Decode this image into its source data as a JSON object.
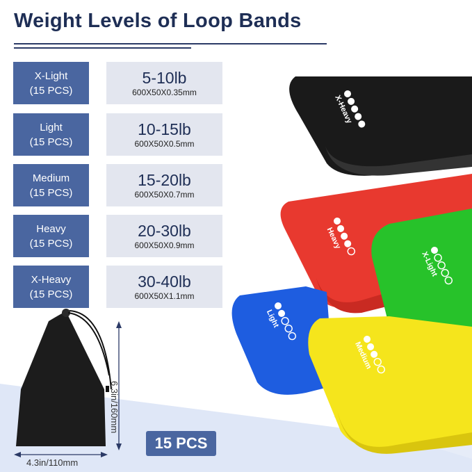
{
  "title": "Weight Levels of Loop Bands",
  "levels": [
    {
      "name": "X-Light",
      "count": "(15 PCS)",
      "weight": "5-10lb",
      "size": "600X50X0.35mm"
    },
    {
      "name": "Light",
      "count": "(15 PCS)",
      "weight": "10-15lb",
      "size": "600X50X0.5mm"
    },
    {
      "name": "Medium",
      "count": "(15 PCS)",
      "weight": "15-20lb",
      "size": "600X50X0.7mm"
    },
    {
      "name": "Heavy",
      "count": "(15 PCS)",
      "weight": "20-30lb",
      "size": "600X50X0.9mm"
    },
    {
      "name": "X-Heavy",
      "count": "(15 PCS)",
      "weight": "30-40lb",
      "size": "600X50X1.1mm"
    }
  ],
  "bag": {
    "height_label": "6.3in/160mm",
    "width_label": "4.3in/110mm"
  },
  "badge": "15 PCS",
  "bands": {
    "black": {
      "label": "X-Heavy",
      "color": "#1a1a1a",
      "filled_dots": 5
    },
    "red": {
      "label": "Heavy",
      "color": "#e8392f",
      "filled_dots": 4
    },
    "green": {
      "label": "X-Light",
      "color": "#27c22a",
      "filled_dots": 1
    },
    "blue": {
      "label": "Light",
      "color": "#1e5de0",
      "filled_dots": 2
    },
    "yellow": {
      "label": "Medium",
      "color": "#f5e51c",
      "filled_dots": 3
    }
  },
  "colors": {
    "primary": "#1e2e55",
    "level_box": "#4a66a0",
    "spec_box": "#e3e6ef",
    "background_accent": "#dfe7f7"
  }
}
